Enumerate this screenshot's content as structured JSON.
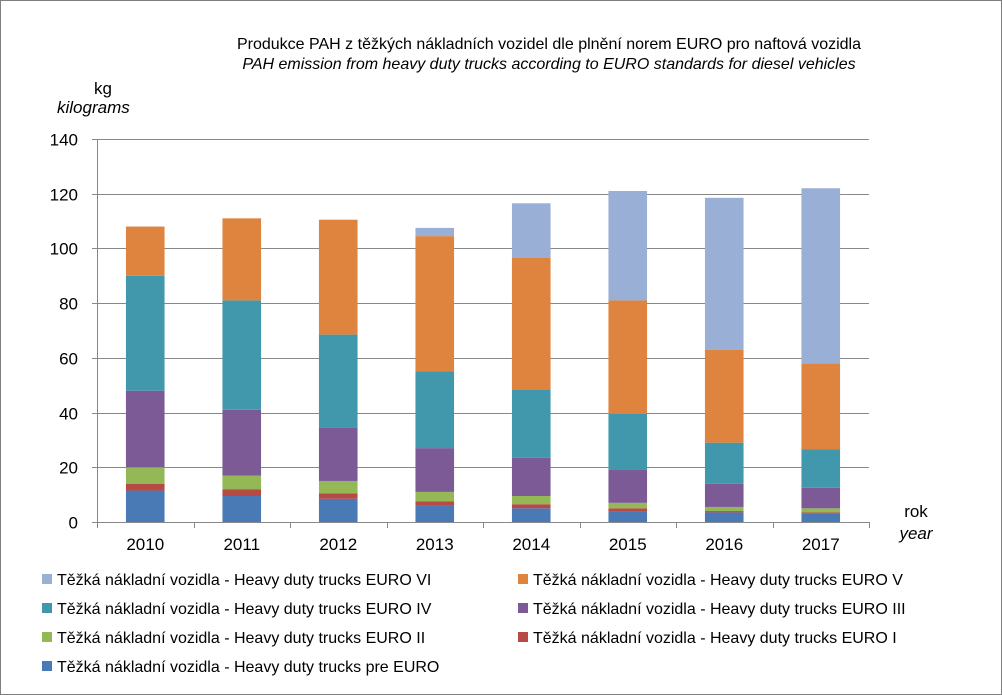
{
  "chart_data": {
    "type": "bar",
    "stacked": true,
    "title": "Produkce PAH z těžkých nákladních  vozidel dle plnění norem EURO pro naftová vozidla",
    "subtitle": "PAH emission from heavy duty trucks according to EURO standards for diesel vehicles",
    "ylabel": "kg",
    "ylabel_en": "kilograms",
    "xlabel": "rok",
    "xlabel_en": "year",
    "ylim": [
      0,
      140
    ],
    "yticks": [
      "0",
      "20",
      "40",
      "60",
      "80",
      "100",
      "120",
      "140"
    ],
    "grid": true,
    "legend_position": "bottom",
    "categories": [
      "2010",
      "2011",
      "2012",
      "2013",
      "2014",
      "2015",
      "2016",
      "2017"
    ],
    "series": [
      {
        "name": "Těžká nákladní vozidla - Heavy duty trucks pre EURO",
        "color": "#4a7ab5",
        "values": [
          11.5,
          9.5,
          8.5,
          6,
          5,
          4,
          3.5,
          3
        ]
      },
      {
        "name": "Těžká nákladní vozidla - Heavy duty trucks EURO I",
        "color": "#b84a46",
        "values": [
          2.5,
          2.5,
          2,
          1.5,
          1.5,
          1,
          0.5,
          0.5
        ]
      },
      {
        "name": "Těžká nákladní vozidla - Heavy duty trucks EURO II",
        "color": "#93b855",
        "values": [
          6,
          5,
          4.5,
          3.5,
          3,
          2,
          1.5,
          1.5
        ]
      },
      {
        "name": "Těžká nákladní vozidla - Heavy duty trucks EURO III",
        "color": "#7b5a96",
        "values": [
          28,
          24,
          19.5,
          16,
          14,
          12,
          8.5,
          7.5
        ]
      },
      {
        "name": "Těžká nákladní vozidla - Heavy duty trucks EURO IV",
        "color": "#4198ad",
        "values": [
          42,
          40,
          34,
          28,
          25,
          20.5,
          15,
          14
        ]
      },
      {
        "name": "Těžká nákladní vozidla - Heavy duty trucks EURO V",
        "color": "#df843e",
        "values": [
          18,
          30,
          42,
          49.5,
          48,
          41.5,
          34,
          31.5
        ]
      },
      {
        "name": "Těžká nákladní vozidla - Heavy duty trucks EURO VI",
        "color": "#9aafd6",
        "values": [
          0,
          0,
          0,
          3,
          20,
          40,
          55.5,
          64
        ]
      }
    ]
  }
}
